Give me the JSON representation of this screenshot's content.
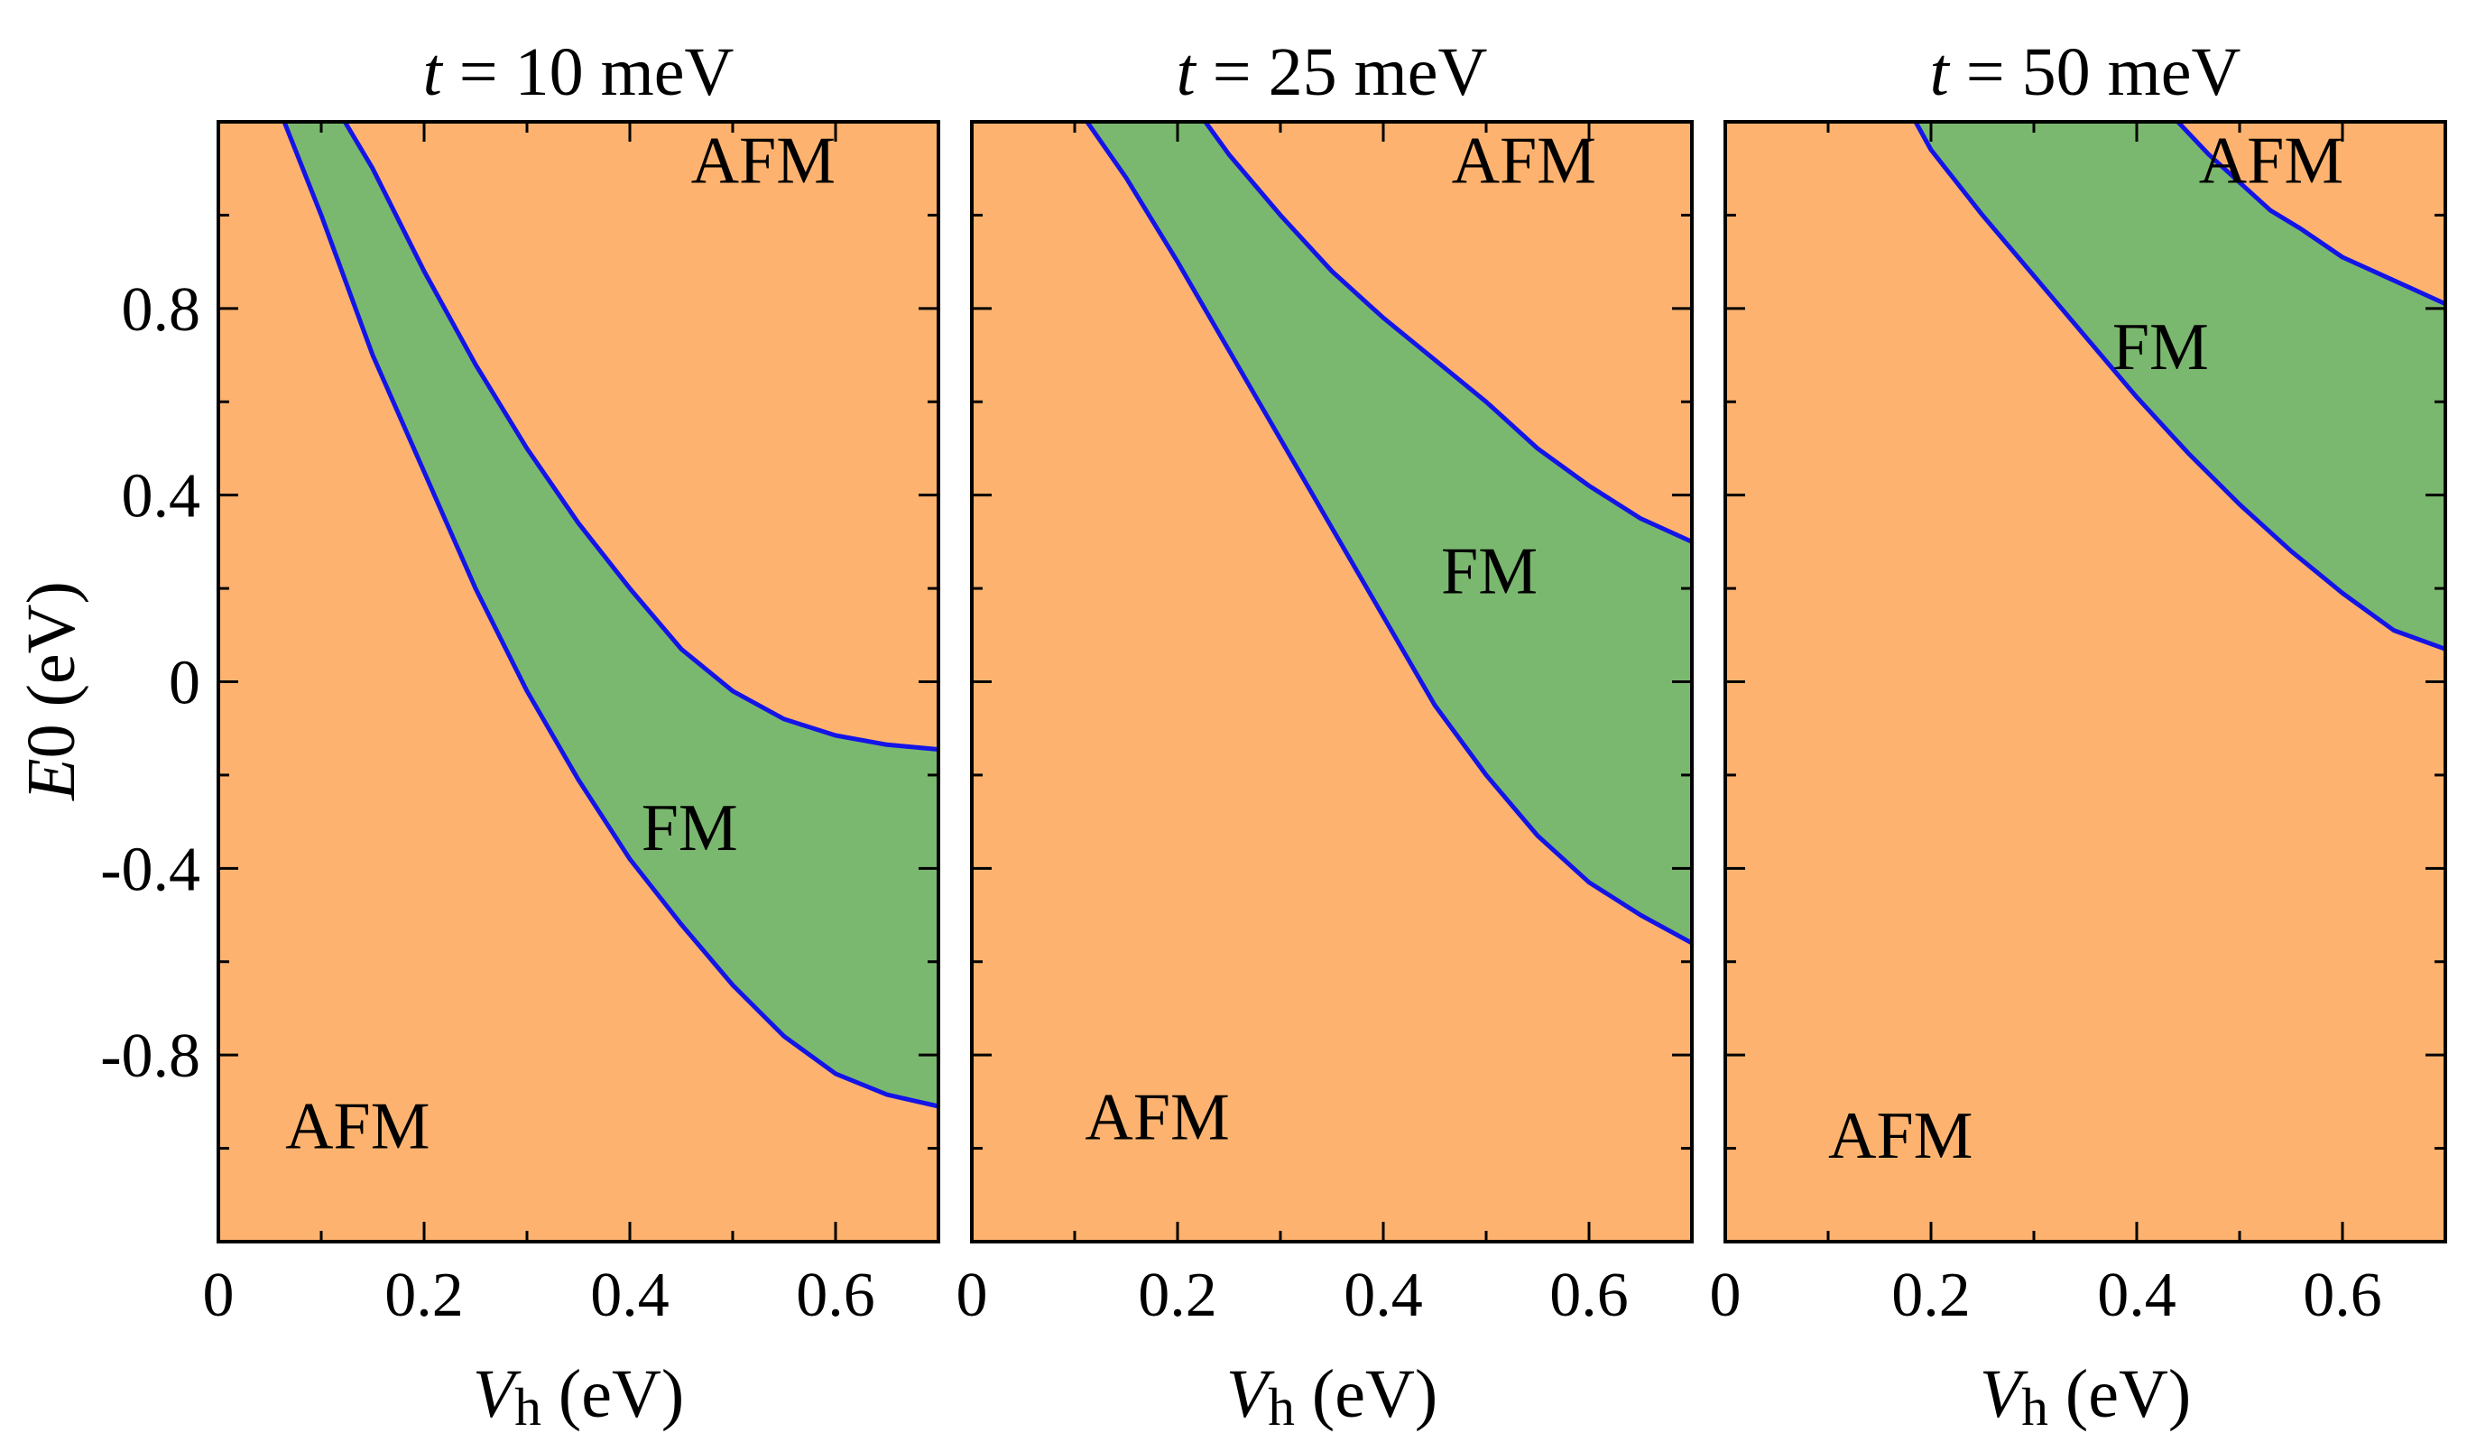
{
  "chart_data": {
    "type": "area",
    "colors": {
      "afm_fill": "#FDB36F",
      "fm_fill": "#7BB86F",
      "boundary": "#1414E6",
      "frame": "#000000"
    },
    "shared": {
      "xlabel": {
        "var": "V",
        "sub": "h",
        "unit": " (eV)"
      },
      "ylabel": {
        "var": "E",
        "sub": "0",
        "unit": " (eV)"
      },
      "xlim": [
        0,
        0.7
      ],
      "ylim": [
        -1.2,
        1.2
      ],
      "xticks": [
        {
          "value": 0,
          "label": "0"
        },
        {
          "value": 0.2,
          "label": "0.2"
        },
        {
          "value": 0.4,
          "label": "0.4"
        },
        {
          "value": 0.6,
          "label": "0.6"
        }
      ],
      "yticks": [
        {
          "value": 0.8,
          "label": "0.8"
        },
        {
          "value": 0.4,
          "label": "0.4"
        },
        {
          "value": 0,
          "label": "0"
        },
        {
          "value": -0.4,
          "label": "-0.4"
        },
        {
          "value": -0.8,
          "label": "-0.8"
        }
      ],
      "xminor": [
        0.1,
        0.3,
        0.5
      ],
      "yminor": [
        1.0,
        0.6,
        0.2,
        -0.2,
        -0.6,
        -1.0
      ]
    },
    "panels": [
      {
        "title": {
          "var": "t",
          "rest": " = 10 meV"
        },
        "lower_boundary": [
          [
            0.064,
            1.2
          ],
          [
            0.1,
            1.0
          ],
          [
            0.15,
            0.7
          ],
          [
            0.2,
            0.45
          ],
          [
            0.25,
            0.2
          ],
          [
            0.3,
            -0.02
          ],
          [
            0.35,
            -0.21
          ],
          [
            0.4,
            -0.38
          ],
          [
            0.45,
            -0.52
          ],
          [
            0.5,
            -0.65
          ],
          [
            0.55,
            -0.76
          ],
          [
            0.6,
            -0.84
          ],
          [
            0.65,
            -0.885
          ],
          [
            0.7,
            -0.91
          ]
        ],
        "upper_boundary": [
          [
            0.123,
            1.2
          ],
          [
            0.15,
            1.1
          ],
          [
            0.2,
            0.88
          ],
          [
            0.25,
            0.68
          ],
          [
            0.3,
            0.5
          ],
          [
            0.35,
            0.34
          ],
          [
            0.4,
            0.2
          ],
          [
            0.45,
            0.07
          ],
          [
            0.5,
            -0.02
          ],
          [
            0.55,
            -0.08
          ],
          [
            0.6,
            -0.115
          ],
          [
            0.65,
            -0.135
          ],
          [
            0.7,
            -0.145
          ]
        ],
        "labels": [
          {
            "text": "AFM",
            "x": 0.6,
            "y": 1.12,
            "anchor": "end"
          },
          {
            "text": "FM",
            "x": 0.505,
            "y": -0.31,
            "anchor": "end"
          },
          {
            "text": "AFM",
            "x": 0.065,
            "y": -0.95,
            "anchor": "start"
          }
        ]
      },
      {
        "title": {
          "var": "t",
          "rest": " = 25 meV"
        },
        "lower_boundary": [
          [
            0.112,
            1.2
          ],
          [
            0.15,
            1.08
          ],
          [
            0.2,
            0.9
          ],
          [
            0.25,
            0.71
          ],
          [
            0.3,
            0.52
          ],
          [
            0.35,
            0.33
          ],
          [
            0.4,
            0.14
          ],
          [
            0.45,
            -0.05
          ],
          [
            0.5,
            -0.2
          ],
          [
            0.55,
            -0.33
          ],
          [
            0.6,
            -0.43
          ],
          [
            0.65,
            -0.5
          ],
          [
            0.7,
            -0.56
          ]
        ],
        "upper_boundary": [
          [
            0.227,
            1.2
          ],
          [
            0.25,
            1.13
          ],
          [
            0.3,
            1.0
          ],
          [
            0.35,
            0.88
          ],
          [
            0.4,
            0.78
          ],
          [
            0.45,
            0.69
          ],
          [
            0.5,
            0.6
          ],
          [
            0.55,
            0.5
          ],
          [
            0.6,
            0.42
          ],
          [
            0.65,
            0.35
          ],
          [
            0.7,
            0.3
          ]
        ],
        "labels": [
          {
            "text": "AFM",
            "x": 0.607,
            "y": 1.12,
            "anchor": "end"
          },
          {
            "text": "FM",
            "x": 0.55,
            "y": 0.24,
            "anchor": "end"
          },
          {
            "text": "AFM",
            "x": 0.11,
            "y": -0.93,
            "anchor": "start"
          }
        ]
      },
      {
        "title": {
          "var": "t",
          "rest": " = 50 meV"
        },
        "lower_boundary": [
          [
            0.185,
            1.2
          ],
          [
            0.2,
            1.14
          ],
          [
            0.25,
            1.0
          ],
          [
            0.3,
            0.87
          ],
          [
            0.35,
            0.74
          ],
          [
            0.4,
            0.61
          ],
          [
            0.45,
            0.49
          ],
          [
            0.5,
            0.38
          ],
          [
            0.55,
            0.28
          ],
          [
            0.6,
            0.19
          ],
          [
            0.65,
            0.11
          ],
          [
            0.7,
            0.07
          ]
        ],
        "upper_boundary": [
          [
            0.44,
            1.2
          ],
          [
            0.47,
            1.13
          ],
          [
            0.5,
            1.07
          ],
          [
            0.53,
            1.01
          ],
          [
            0.56,
            0.97
          ],
          [
            0.6,
            0.91
          ],
          [
            0.65,
            0.86
          ],
          [
            0.7,
            0.81
          ]
        ],
        "labels": [
          {
            "text": "AFM",
            "x": 0.601,
            "y": 1.12,
            "anchor": "end"
          },
          {
            "text": "FM",
            "x": 0.47,
            "y": 0.72,
            "anchor": "end"
          },
          {
            "text": "AFM",
            "x": 0.1,
            "y": -0.97,
            "anchor": "start"
          }
        ]
      }
    ]
  }
}
